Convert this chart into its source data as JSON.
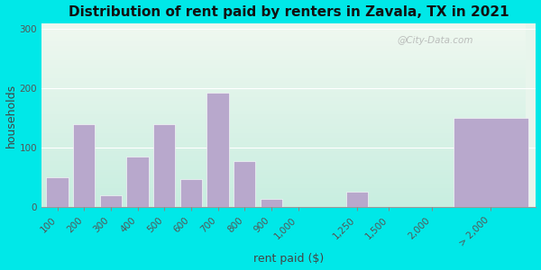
{
  "title": "Distribution of rent paid by renters in Zavala, TX in 2021",
  "xlabel": "rent paid ($)",
  "ylabel": "households",
  "bar_labels": [
    "100",
    "200",
    "300",
    "400",
    "500",
    "600",
    "700",
    "800",
    "900",
    "1,000",
    "1,250",
    "1,500",
    "2,000",
    "> 2,000"
  ],
  "bar_values": [
    50,
    140,
    20,
    85,
    140,
    47,
    193,
    78,
    14,
    0,
    27,
    0,
    0,
    150
  ],
  "bar_color": "#b8a8cc",
  "ylim": [
    0,
    310
  ],
  "yticks": [
    0,
    100,
    200,
    300
  ],
  "background_outer": "#00e8e8",
  "title_fontsize": 11,
  "axis_label_fontsize": 9,
  "tick_fontsize": 7.5,
  "watermark": "@City-Data.com"
}
